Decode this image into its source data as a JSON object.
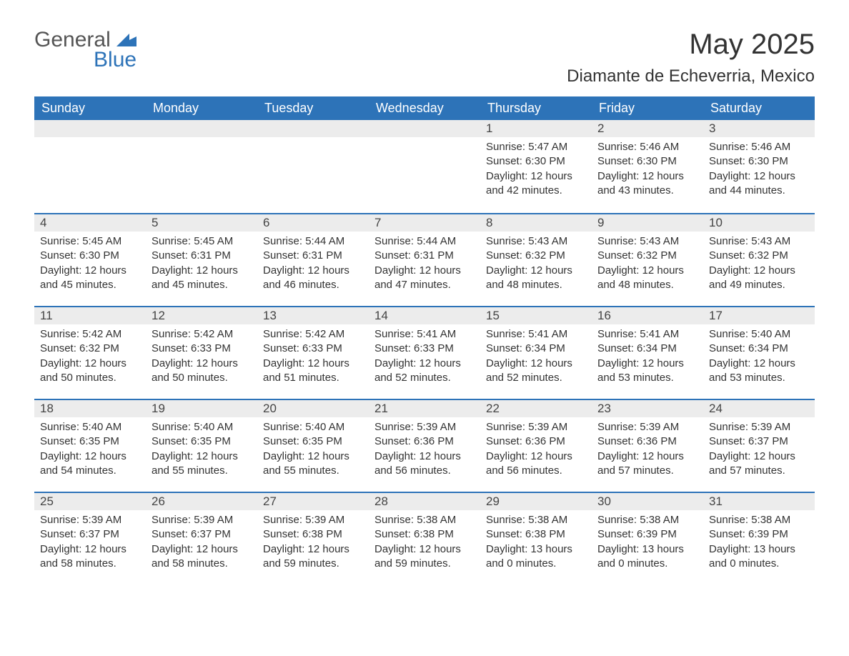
{
  "logo": {
    "general": "General",
    "blue": "Blue"
  },
  "title": "May 2025",
  "location": "Diamante de Echeverria, Mexico",
  "colors": {
    "header_bg": "#2d73b8",
    "header_text": "#ffffff",
    "daynum_bg": "#ececec",
    "week_border": "#2d73b8",
    "body_text": "#333333",
    "background": "#ffffff"
  },
  "weekdays": [
    "Sunday",
    "Monday",
    "Tuesday",
    "Wednesday",
    "Thursday",
    "Friday",
    "Saturday"
  ],
  "weeks": [
    [
      {
        "n": "",
        "sunrise": "",
        "sunset": "",
        "daylight": ""
      },
      {
        "n": "",
        "sunrise": "",
        "sunset": "",
        "daylight": ""
      },
      {
        "n": "",
        "sunrise": "",
        "sunset": "",
        "daylight": ""
      },
      {
        "n": "",
        "sunrise": "",
        "sunset": "",
        "daylight": ""
      },
      {
        "n": "1",
        "sunrise": "Sunrise: 5:47 AM",
        "sunset": "Sunset: 6:30 PM",
        "daylight": "Daylight: 12 hours and 42 minutes."
      },
      {
        "n": "2",
        "sunrise": "Sunrise: 5:46 AM",
        "sunset": "Sunset: 6:30 PM",
        "daylight": "Daylight: 12 hours and 43 minutes."
      },
      {
        "n": "3",
        "sunrise": "Sunrise: 5:46 AM",
        "sunset": "Sunset: 6:30 PM",
        "daylight": "Daylight: 12 hours and 44 minutes."
      }
    ],
    [
      {
        "n": "4",
        "sunrise": "Sunrise: 5:45 AM",
        "sunset": "Sunset: 6:30 PM",
        "daylight": "Daylight: 12 hours and 45 minutes."
      },
      {
        "n": "5",
        "sunrise": "Sunrise: 5:45 AM",
        "sunset": "Sunset: 6:31 PM",
        "daylight": "Daylight: 12 hours and 45 minutes."
      },
      {
        "n": "6",
        "sunrise": "Sunrise: 5:44 AM",
        "sunset": "Sunset: 6:31 PM",
        "daylight": "Daylight: 12 hours and 46 minutes."
      },
      {
        "n": "7",
        "sunrise": "Sunrise: 5:44 AM",
        "sunset": "Sunset: 6:31 PM",
        "daylight": "Daylight: 12 hours and 47 minutes."
      },
      {
        "n": "8",
        "sunrise": "Sunrise: 5:43 AM",
        "sunset": "Sunset: 6:32 PM",
        "daylight": "Daylight: 12 hours and 48 minutes."
      },
      {
        "n": "9",
        "sunrise": "Sunrise: 5:43 AM",
        "sunset": "Sunset: 6:32 PM",
        "daylight": "Daylight: 12 hours and 48 minutes."
      },
      {
        "n": "10",
        "sunrise": "Sunrise: 5:43 AM",
        "sunset": "Sunset: 6:32 PM",
        "daylight": "Daylight: 12 hours and 49 minutes."
      }
    ],
    [
      {
        "n": "11",
        "sunrise": "Sunrise: 5:42 AM",
        "sunset": "Sunset: 6:32 PM",
        "daylight": "Daylight: 12 hours and 50 minutes."
      },
      {
        "n": "12",
        "sunrise": "Sunrise: 5:42 AM",
        "sunset": "Sunset: 6:33 PM",
        "daylight": "Daylight: 12 hours and 50 minutes."
      },
      {
        "n": "13",
        "sunrise": "Sunrise: 5:42 AM",
        "sunset": "Sunset: 6:33 PM",
        "daylight": "Daylight: 12 hours and 51 minutes."
      },
      {
        "n": "14",
        "sunrise": "Sunrise: 5:41 AM",
        "sunset": "Sunset: 6:33 PM",
        "daylight": "Daylight: 12 hours and 52 minutes."
      },
      {
        "n": "15",
        "sunrise": "Sunrise: 5:41 AM",
        "sunset": "Sunset: 6:34 PM",
        "daylight": "Daylight: 12 hours and 52 minutes."
      },
      {
        "n": "16",
        "sunrise": "Sunrise: 5:41 AM",
        "sunset": "Sunset: 6:34 PM",
        "daylight": "Daylight: 12 hours and 53 minutes."
      },
      {
        "n": "17",
        "sunrise": "Sunrise: 5:40 AM",
        "sunset": "Sunset: 6:34 PM",
        "daylight": "Daylight: 12 hours and 53 minutes."
      }
    ],
    [
      {
        "n": "18",
        "sunrise": "Sunrise: 5:40 AM",
        "sunset": "Sunset: 6:35 PM",
        "daylight": "Daylight: 12 hours and 54 minutes."
      },
      {
        "n": "19",
        "sunrise": "Sunrise: 5:40 AM",
        "sunset": "Sunset: 6:35 PM",
        "daylight": "Daylight: 12 hours and 55 minutes."
      },
      {
        "n": "20",
        "sunrise": "Sunrise: 5:40 AM",
        "sunset": "Sunset: 6:35 PM",
        "daylight": "Daylight: 12 hours and 55 minutes."
      },
      {
        "n": "21",
        "sunrise": "Sunrise: 5:39 AM",
        "sunset": "Sunset: 6:36 PM",
        "daylight": "Daylight: 12 hours and 56 minutes."
      },
      {
        "n": "22",
        "sunrise": "Sunrise: 5:39 AM",
        "sunset": "Sunset: 6:36 PM",
        "daylight": "Daylight: 12 hours and 56 minutes."
      },
      {
        "n": "23",
        "sunrise": "Sunrise: 5:39 AM",
        "sunset": "Sunset: 6:36 PM",
        "daylight": "Daylight: 12 hours and 57 minutes."
      },
      {
        "n": "24",
        "sunrise": "Sunrise: 5:39 AM",
        "sunset": "Sunset: 6:37 PM",
        "daylight": "Daylight: 12 hours and 57 minutes."
      }
    ],
    [
      {
        "n": "25",
        "sunrise": "Sunrise: 5:39 AM",
        "sunset": "Sunset: 6:37 PM",
        "daylight": "Daylight: 12 hours and 58 minutes."
      },
      {
        "n": "26",
        "sunrise": "Sunrise: 5:39 AM",
        "sunset": "Sunset: 6:37 PM",
        "daylight": "Daylight: 12 hours and 58 minutes."
      },
      {
        "n": "27",
        "sunrise": "Sunrise: 5:39 AM",
        "sunset": "Sunset: 6:38 PM",
        "daylight": "Daylight: 12 hours and 59 minutes."
      },
      {
        "n": "28",
        "sunrise": "Sunrise: 5:38 AM",
        "sunset": "Sunset: 6:38 PM",
        "daylight": "Daylight: 12 hours and 59 minutes."
      },
      {
        "n": "29",
        "sunrise": "Sunrise: 5:38 AM",
        "sunset": "Sunset: 6:38 PM",
        "daylight": "Daylight: 13 hours and 0 minutes."
      },
      {
        "n": "30",
        "sunrise": "Sunrise: 5:38 AM",
        "sunset": "Sunset: 6:39 PM",
        "daylight": "Daylight: 13 hours and 0 minutes."
      },
      {
        "n": "31",
        "sunrise": "Sunrise: 5:38 AM",
        "sunset": "Sunset: 6:39 PM",
        "daylight": "Daylight: 13 hours and 0 minutes."
      }
    ]
  ]
}
